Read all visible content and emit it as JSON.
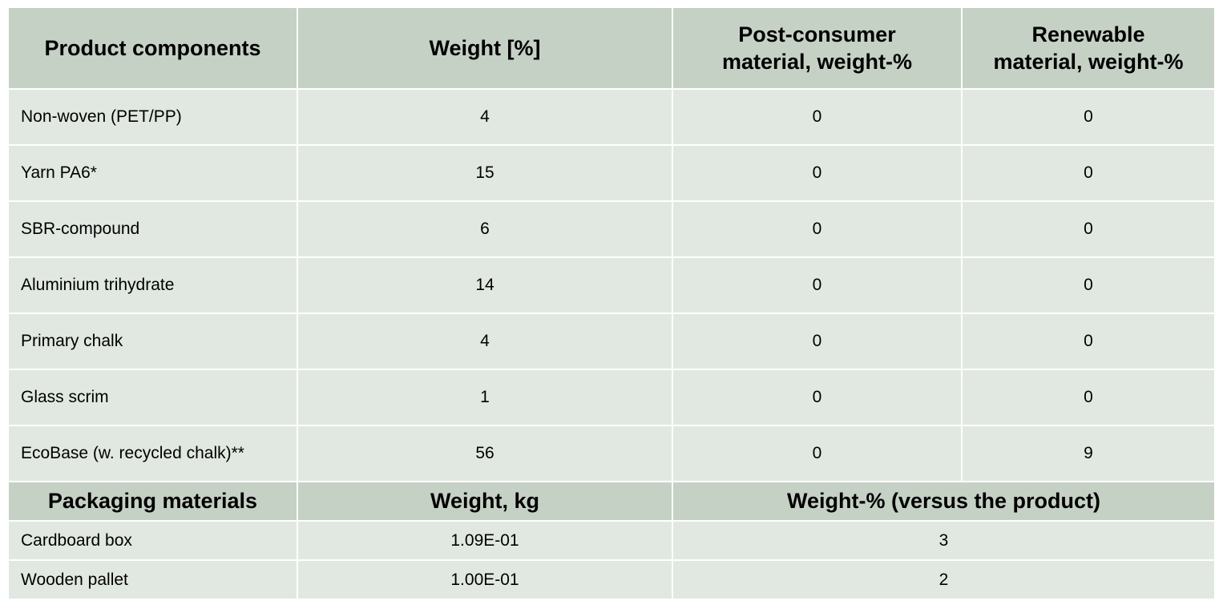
{
  "product_table": {
    "headers": [
      "Product components",
      "Weight [%]",
      "Post-consumer\nmaterial, weight-%",
      "Renewable\nmaterial, weight-%"
    ],
    "header_lines": {
      "col1": "Product components",
      "col2": "Weight [%]",
      "col3_line1": "Post-consumer",
      "col3_line2": "material, weight-%",
      "col4_line1": "Renewable",
      "col4_line2": "material, weight-%"
    },
    "rows": [
      {
        "component": "Non-woven (PET/PP)",
        "weight": "4",
        "post_consumer": "0",
        "renewable": "0"
      },
      {
        "component": "Yarn PA6*",
        "weight": "15",
        "post_consumer": "0",
        "renewable": "0"
      },
      {
        "component": "SBR-compound",
        "weight": "6",
        "post_consumer": "0",
        "renewable": "0"
      },
      {
        "component": "Aluminium trihydrate",
        "weight": "14",
        "post_consumer": "0",
        "renewable": "0"
      },
      {
        "component": "Primary chalk",
        "weight": "4",
        "post_consumer": "0",
        "renewable": "0"
      },
      {
        "component": "Glass scrim",
        "weight": "1",
        "post_consumer": "0",
        "renewable": "0"
      },
      {
        "component": "EcoBase (w. recycled chalk)**",
        "weight": "56",
        "post_consumer": "0",
        "renewable": "9"
      }
    ]
  },
  "packaging_table": {
    "headers": {
      "col1": "Packaging materials",
      "col2": "Weight, kg",
      "col3": "Weight-% (versus the product)"
    },
    "rows": [
      {
        "material": "Cardboard box",
        "weight_kg": "1.09E-01",
        "weight_pct": "3"
      },
      {
        "material": "Wooden pallet",
        "weight_kg": "1.00E-01",
        "weight_pct": "2"
      }
    ]
  },
  "colors": {
    "header_bg": "#c5d1c5",
    "row_bg": "#e1e8e1",
    "border": "#ffffff"
  }
}
